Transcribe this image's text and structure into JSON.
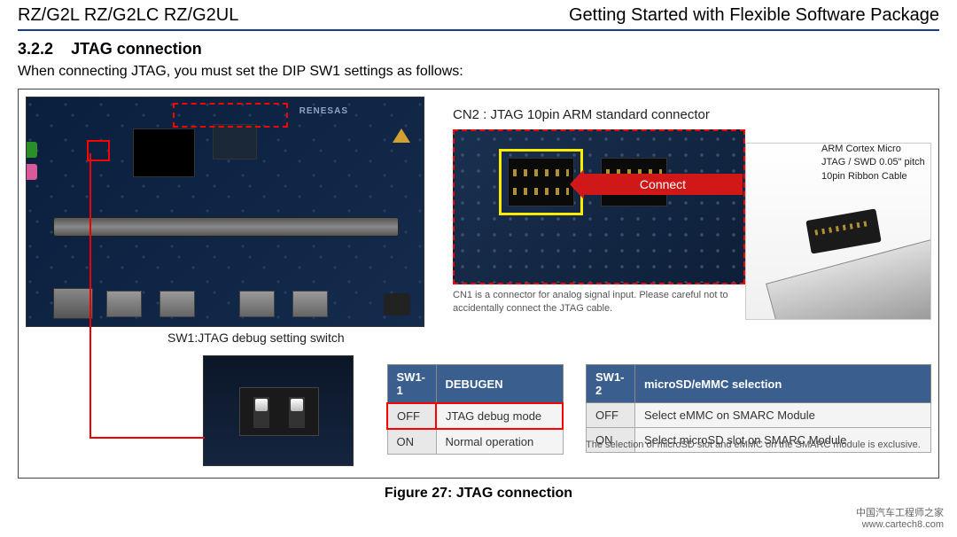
{
  "header": {
    "left": "RZ/G2L RZ/G2LC RZ/G2UL",
    "right": "Getting Started with Flexible Software Package"
  },
  "section": {
    "number": "3.2.2",
    "title": "JTAG connection",
    "intro": "When connecting JTAG, you must set the DIP SW1 settings as follows:"
  },
  "labels": {
    "sw1": "SW1:JTAG debug setting switch",
    "cn2": "CN2 : JTAG 10pin ARM standard connector",
    "cn1_note": "CN1 is a connector for analog signal input. Please careful not to accidentally connect the JTAG cable.",
    "connect": "Connect",
    "cable": "ARM Cortex Micro JTAG / SWD 0.05\" pitch 10pin Ribbon Cable",
    "renesas": "RENESAS"
  },
  "table1": {
    "headers": [
      "SW1-1",
      "DEBUGEN"
    ],
    "rows": [
      {
        "state": "OFF",
        "desc": "JTAG debug mode",
        "highlight": true
      },
      {
        "state": "ON",
        "desc": "Normal operation",
        "highlight": false
      }
    ]
  },
  "table2": {
    "headers": [
      "SW1-2",
      "microSD/eMMC selection"
    ],
    "rows": [
      {
        "state": "OFF",
        "desc": "Select eMMC on SMARC Module"
      },
      {
        "state": "ON",
        "desc": "Select microSD slot on SMARC Module"
      }
    ],
    "note": "The selection of microSD slot and eMMC on the SMARC module is exclusive."
  },
  "caption": "Figure 27: JTAG connection",
  "watermark": {
    "line1": "中国汽车工程师之家",
    "line2": "www.cartech8.com"
  },
  "colors": {
    "accent": "#3a5f8f",
    "highlight": "#f00",
    "header_rule": "#1a3d8f"
  }
}
